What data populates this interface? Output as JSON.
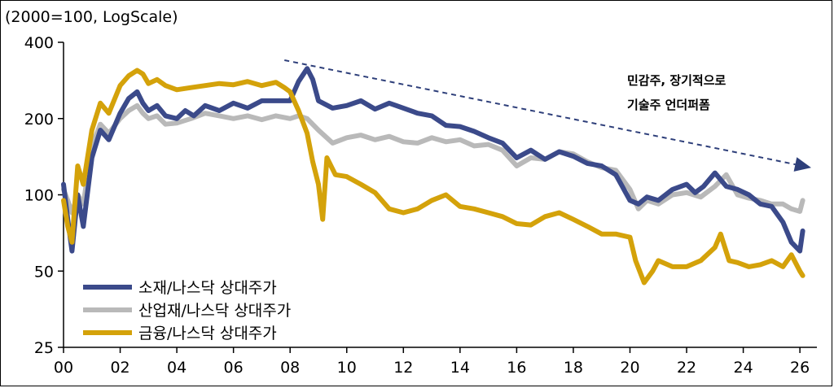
{
  "chart_data": {
    "type": "line",
    "unit_label": "(2000=100, LogScale)",
    "y_scale": "log",
    "ylim": [
      25,
      400
    ],
    "y_ticks": [
      25,
      50,
      100,
      200,
      400
    ],
    "y_tick_labels": [
      "25",
      "50",
      "100",
      "200",
      "400"
    ],
    "xlim": [
      2000,
      2026.6
    ],
    "x_ticks": [
      2000,
      2002,
      2004,
      2006,
      2008,
      2010,
      2012,
      2014,
      2016,
      2018,
      2020,
      2022,
      2024,
      2026
    ],
    "x_tick_labels": [
      "00",
      "02",
      "04",
      "06",
      "08",
      "10",
      "12",
      "14",
      "16",
      "18",
      "20",
      "22",
      "24",
      "26"
    ],
    "legend_position": "bottom-left",
    "annotation": {
      "lines": [
        "민감주, 장기적으로",
        "기술주 언더퍼폼"
      ],
      "trend_arrow": {
        "from": [
          2007.8,
          340
        ],
        "to": [
          2026.4,
          128
        ]
      }
    },
    "colors": {
      "materials": "#3b4a8a",
      "industrials": "#b9b9b9",
      "financials": "#d4a20a",
      "arrow": "#2e3f7a"
    },
    "series": [
      {
        "name": "소재/나스닥 상대주가",
        "color": "#3b4a8a",
        "x": [
          2000,
          2000.15,
          2000.3,
          2000.5,
          2000.7,
          2001.0,
          2001.3,
          2001.6,
          2002.0,
          2002.3,
          2002.6,
          2002.8,
          2003.0,
          2003.3,
          2003.6,
          2004.0,
          2004.3,
          2004.6,
          2005.0,
          2005.5,
          2006.0,
          2006.5,
          2007.0,
          2007.5,
          2008.0,
          2008.3,
          2008.6,
          2008.8,
          2009.0,
          2009.5,
          2010.0,
          2010.5,
          2011.0,
          2011.5,
          2012.0,
          2012.5,
          2013.0,
          2013.5,
          2014.0,
          2014.5,
          2015.0,
          2015.5,
          2016.0,
          2016.5,
          2017.0,
          2017.5,
          2018.0,
          2018.5,
          2019.0,
          2019.5,
          2020.0,
          2020.3,
          2020.6,
          2021.0,
          2021.5,
          2022.0,
          2022.3,
          2022.6,
          2023.0,
          2023.4,
          2023.8,
          2024.2,
          2024.6,
          2025.0,
          2025.4,
          2025.7,
          2026.0,
          2026.1
        ],
        "values": [
          110,
          80,
          60,
          100,
          75,
          140,
          180,
          165,
          210,
          240,
          255,
          230,
          215,
          225,
          205,
          200,
          215,
          205,
          225,
          215,
          230,
          220,
          235,
          235,
          235,
          280,
          315,
          285,
          235,
          220,
          225,
          235,
          218,
          230,
          220,
          210,
          205,
          188,
          186,
          178,
          168,
          160,
          140,
          150,
          138,
          148,
          142,
          133,
          130,
          120,
          95,
          92,
          98,
          95,
          105,
          110,
          102,
          108,
          122,
          108,
          105,
          100,
          92,
          90,
          78,
          65,
          60,
          72
        ]
      },
      {
        "name": "산업재/나스닥 상대주가",
        "color": "#b9b9b9",
        "x": [
          2000,
          2000.15,
          2000.3,
          2000.5,
          2000.7,
          2001.0,
          2001.3,
          2001.6,
          2002.0,
          2002.3,
          2002.6,
          2002.8,
          2003.0,
          2003.3,
          2003.6,
          2004.0,
          2004.5,
          2005.0,
          2005.5,
          2006.0,
          2006.5,
          2007.0,
          2007.5,
          2008.0,
          2008.3,
          2008.6,
          2009.0,
          2009.5,
          2010.0,
          2010.5,
          2011.0,
          2011.5,
          2012.0,
          2012.5,
          2013.0,
          2013.5,
          2014.0,
          2014.5,
          2015.0,
          2015.5,
          2016.0,
          2016.5,
          2017.0,
          2017.5,
          2018.0,
          2018.5,
          2019.0,
          2019.5,
          2020.0,
          2020.3,
          2020.6,
          2021.0,
          2021.5,
          2022.0,
          2022.5,
          2023.0,
          2023.4,
          2023.8,
          2024.2,
          2024.6,
          2025.0,
          2025.4,
          2025.7,
          2026.0,
          2026.1
        ],
        "values": [
          105,
          95,
          85,
          100,
          92,
          155,
          190,
          175,
          200,
          215,
          225,
          210,
          200,
          205,
          190,
          192,
          200,
          210,
          205,
          200,
          205,
          198,
          205,
          200,
          205,
          200,
          180,
          160,
          168,
          172,
          165,
          170,
          162,
          160,
          168,
          162,
          165,
          156,
          158,
          150,
          130,
          140,
          138,
          148,
          145,
          135,
          128,
          125,
          105,
          88,
          95,
          92,
          100,
          102,
          98,
          108,
          120,
          100,
          97,
          95,
          92,
          92,
          88,
          86,
          95
        ]
      },
      {
        "name": "금융/나스닥 상대주가",
        "color": "#d4a20a",
        "x": [
          2000,
          2000.15,
          2000.3,
          2000.5,
          2000.7,
          2001.0,
          2001.3,
          2001.6,
          2002.0,
          2002.3,
          2002.6,
          2002.8,
          2003.0,
          2003.3,
          2003.6,
          2004.0,
          2004.5,
          2005.0,
          2005.5,
          2006.0,
          2006.5,
          2007.0,
          2007.5,
          2007.8,
          2008.0,
          2008.3,
          2008.6,
          2008.8,
          2009.0,
          2009.15,
          2009.3,
          2009.6,
          2010.0,
          2010.5,
          2011.0,
          2011.5,
          2012.0,
          2012.5,
          2013.0,
          2013.5,
          2014.0,
          2014.5,
          2015.0,
          2015.5,
          2016.0,
          2016.5,
          2017.0,
          2017.5,
          2018.0,
          2018.5,
          2019.0,
          2019.5,
          2020.0,
          2020.2,
          2020.5,
          2020.8,
          2021.0,
          2021.5,
          2022.0,
          2022.5,
          2023.0,
          2023.2,
          2023.5,
          2023.8,
          2024.2,
          2024.6,
          2025.0,
          2025.4,
          2025.7,
          2026.0,
          2026.1
        ],
        "values": [
          95,
          75,
          65,
          130,
          110,
          180,
          230,
          210,
          270,
          295,
          310,
          300,
          275,
          285,
          270,
          260,
          265,
          270,
          275,
          272,
          280,
          270,
          278,
          265,
          255,
          215,
          175,
          135,
          110,
          80,
          140,
          120,
          118,
          110,
          102,
          88,
          85,
          88,
          95,
          100,
          90,
          88,
          85,
          82,
          77,
          76,
          82,
          85,
          80,
          75,
          70,
          70,
          68,
          55,
          45,
          50,
          55,
          52,
          52,
          55,
          62,
          70,
          55,
          54,
          52,
          53,
          55,
          52,
          58,
          50,
          48
        ]
      }
    ]
  }
}
